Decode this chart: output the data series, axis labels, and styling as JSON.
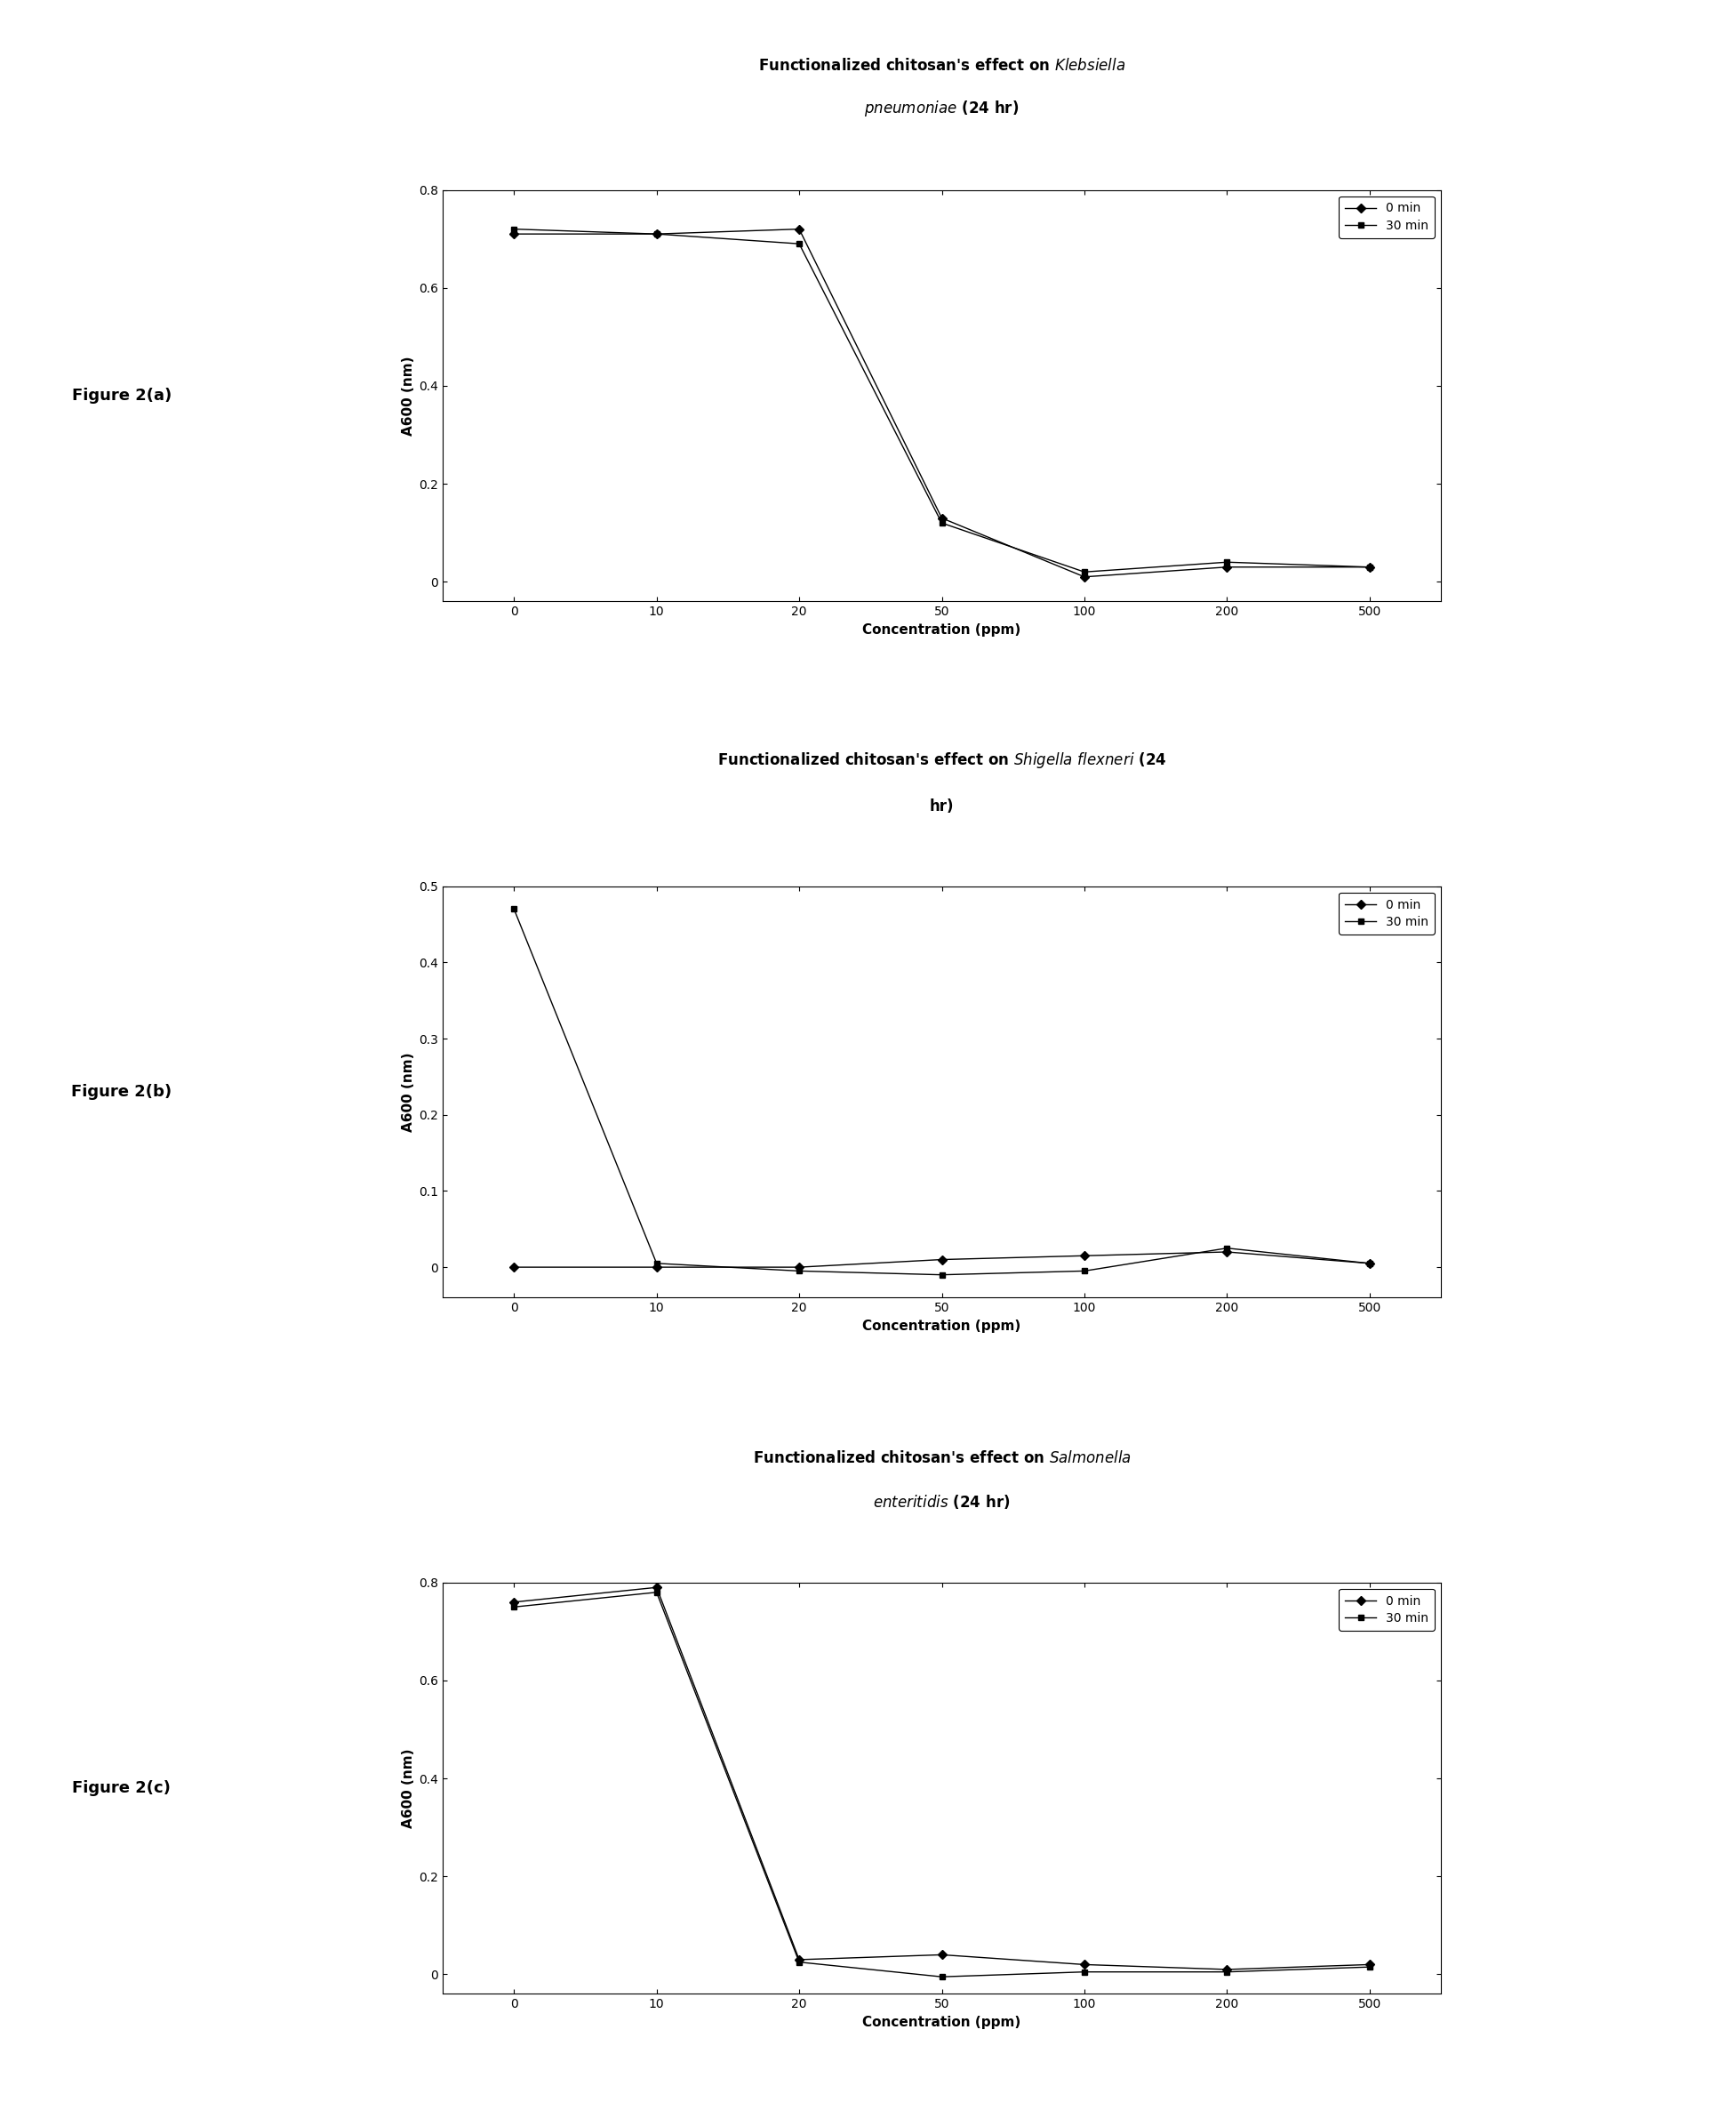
{
  "charts": [
    {
      "figure_label": "Figure 2(a)",
      "title_line1": "Functionalized chitosan's effect on $\\it{Klebsiella}$",
      "title_line2": "$\\it{pneumoniae}$ (24 hr)",
      "x": [
        0,
        10,
        20,
        50,
        100,
        200,
        500
      ],
      "y_0min": [
        0.71,
        0.71,
        0.72,
        0.13,
        0.01,
        0.03,
        0.03
      ],
      "y_30min": [
        0.72,
        0.71,
        0.69,
        0.12,
        0.02,
        0.04,
        0.03
      ],
      "ylim": [
        -0.04,
        0.8
      ],
      "yticks": [
        0,
        0.2,
        0.4,
        0.6,
        0.8
      ],
      "ytick_labels": [
        "0",
        "0.2",
        "0.4",
        "0.6",
        "0.8"
      ],
      "ylabel": "A600 (nm)",
      "xlabel": "Concentration (ppm)"
    },
    {
      "figure_label": "Figure 2(b)",
      "title_line1": "Functionalized chitosan's effect on $\\it{Shigella}$ $\\it{flexneri}$ (24",
      "title_line2": "hr)",
      "x": [
        0,
        10,
        20,
        50,
        100,
        200,
        500
      ],
      "y_0min": [
        0.0,
        0.0,
        0.0,
        0.01,
        0.015,
        0.02,
        0.005
      ],
      "y_30min": [
        0.47,
        0.005,
        -0.005,
        -0.01,
        -0.005,
        0.025,
        0.005
      ],
      "ylim": [
        -0.04,
        0.5
      ],
      "yticks": [
        0.0,
        0.1,
        0.2,
        0.3,
        0.4,
        0.5
      ],
      "ytick_labels": [
        "0",
        "0.1",
        "0.2",
        "0.3",
        "0.4",
        "0.5"
      ],
      "ylabel": "A600 (nm)",
      "xlabel": "Concentration (ppm)"
    },
    {
      "figure_label": "Figure 2(c)",
      "title_line1": "Functionalized chitosan's effect on $\\it{Salmonella}$",
      "title_line2": "$\\it{enteritidis}$ (24 hr)",
      "x": [
        0,
        10,
        20,
        50,
        100,
        200,
        500
      ],
      "y_0min": [
        0.76,
        0.79,
        0.03,
        0.04,
        0.02,
        0.01,
        0.02
      ],
      "y_30min": [
        0.75,
        0.78,
        0.025,
        -0.005,
        0.005,
        0.005,
        0.015
      ],
      "ylim": [
        -0.04,
        0.8
      ],
      "yticks": [
        0,
        0.2,
        0.4,
        0.6,
        0.8
      ],
      "ytick_labels": [
        "0",
        "0.2",
        "0.4",
        "0.6",
        "0.8"
      ],
      "ylabel": "A600 (nm)",
      "xlabel": "Concentration (ppm)"
    }
  ],
  "line_color": "#000000",
  "marker_0min": "D",
  "marker_30min": "s",
  "markersize": 5,
  "linewidth": 1.0,
  "legend_0min": "0 min",
  "legend_30min": "30 min",
  "bg_color": "#ffffff",
  "figure_label_fontsize": 13,
  "title_fontsize": 12,
  "axis_label_fontsize": 11,
  "tick_fontsize": 10,
  "legend_fontsize": 10
}
